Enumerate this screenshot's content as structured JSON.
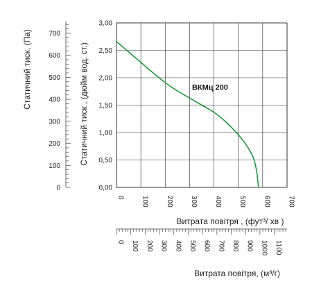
{
  "chart_data": {
    "type": "line",
    "x_axis": {
      "label": "Витрата повітря , (фут³/ хв )",
      "ticks": [
        0,
        100,
        200,
        300,
        400,
        500,
        600,
        700
      ],
      "range": [
        0,
        700
      ]
    },
    "x_axis_secondary": {
      "label": "Витрата повітря, (м³/г)",
      "ticks": [
        0,
        100,
        200,
        300,
        400,
        500,
        600,
        700,
        800,
        900,
        1000,
        1100
      ],
      "range": [
        0,
        1189
      ]
    },
    "y_axis": {
      "label": "Статичний тиск , (дюйм вод. ст.)",
      "ticks": [
        "0,00",
        "0,50",
        "1,00",
        "1,50",
        "2,00",
        "2,50",
        "3,00"
      ],
      "range": [
        0,
        3
      ]
    },
    "y_axis_secondary": {
      "label": "Статичний тиск, (Па)",
      "ticks": [
        0,
        100,
        200,
        300,
        400,
        500,
        600,
        700
      ],
      "range": [
        0,
        747
      ]
    },
    "grid": true,
    "series": [
      {
        "name": "ВКМц 200",
        "color": "#1e9a3c",
        "x": [
          0,
          50,
          100,
          150,
          200,
          250,
          300,
          350,
          400,
          450,
          500,
          525,
          550,
          565,
          575,
          580,
          583
        ],
        "y": [
          2.66,
          2.47,
          2.28,
          2.09,
          1.91,
          1.76,
          1.63,
          1.5,
          1.37,
          1.19,
          0.96,
          0.82,
          0.65,
          0.5,
          0.3,
          0.12,
          0.0
        ]
      }
    ],
    "annotation": {
      "text": "ВКМц 200",
      "x": 310,
      "y": 1.78
    }
  }
}
